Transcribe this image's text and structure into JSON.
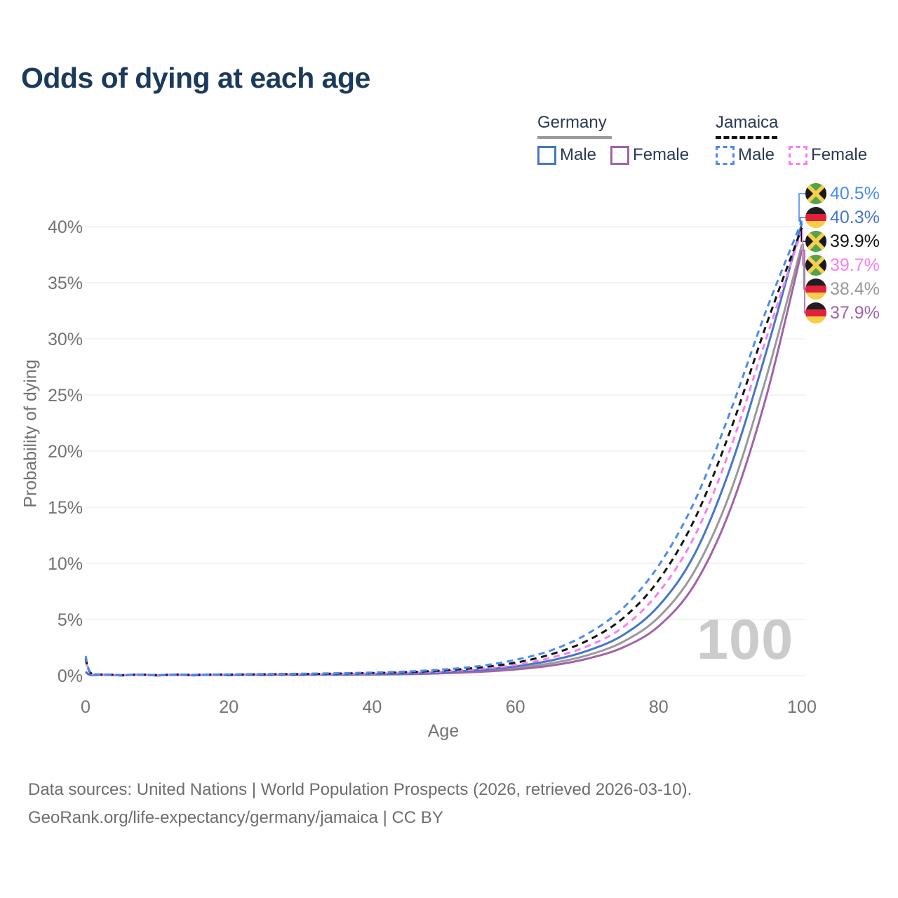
{
  "title": "Odds of dying at each age",
  "legend": {
    "groups": [
      {
        "name": "Germany",
        "line_style": "solid",
        "underline_color": "#9a9a9a",
        "items": [
          {
            "label": "Male",
            "color": "#4577c6"
          },
          {
            "label": "Female",
            "color": "#a263a8"
          }
        ]
      },
      {
        "name": "Jamaica",
        "line_style": "dashed",
        "underline_color": "#141414",
        "items": [
          {
            "label": "Male",
            "color": "#4b8bf0"
          },
          {
            "label": "Female",
            "color": "#f97ef1"
          }
        ]
      }
    ]
  },
  "end_labels": [
    {
      "value": "40.5%",
      "flag": "jamaica",
      "color": "#4b8bf0",
      "series": "jamaica-male"
    },
    {
      "value": "40.3%",
      "flag": "germany",
      "color": "#4577c6",
      "series": "germany-male"
    },
    {
      "value": "39.9%",
      "flag": "jamaica",
      "color": "#141414",
      "series": "jamaica-total"
    },
    {
      "value": "39.7%",
      "flag": "jamaica",
      "color": "#f97ef1",
      "series": "jamaica-female"
    },
    {
      "value": "38.4%",
      "flag": "germany",
      "color": "#9a9a9a",
      "series": "germany-total"
    },
    {
      "value": "37.9%",
      "flag": "germany",
      "color": "#a263a8",
      "series": "germany-female"
    }
  ],
  "watermark": "100",
  "footer": {
    "line1": "Data sources: United Nations | World Population Prospects (2026, retrieved 2026-03-10).",
    "line2": "GeoRank.org/life-expectancy/germany/jamaica | CC BY"
  },
  "chart_data": {
    "type": "line",
    "title": "Odds of dying at each age",
    "xlabel": "Age",
    "ylabel": "Probability of dying",
    "xlim": [
      0,
      100
    ],
    "ylim": [
      0,
      42
    ],
    "x_ticks": [
      0,
      20,
      40,
      60,
      80,
      100
    ],
    "x_tick_labels": [
      "0",
      "20",
      "40",
      "60",
      "80",
      "100"
    ],
    "y_ticks": [
      0,
      5,
      10,
      15,
      20,
      25,
      30,
      35,
      40
    ],
    "y_tick_labels": [
      "0%",
      "5%",
      "10%",
      "15%",
      "20%",
      "25%",
      "30%",
      "35%",
      "40%"
    ],
    "grid": "horizontal",
    "gridline_color": "#ececec",
    "legend_position": "top-right",
    "series": [
      {
        "id": "germany-total",
        "name": "Germany",
        "color": "#9a9a9a",
        "dashed": false,
        "points": [
          [
            0,
            0.33
          ],
          [
            1,
            0.027
          ],
          [
            5,
            0.009
          ],
          [
            10,
            0.009
          ],
          [
            15,
            0.025
          ],
          [
            20,
            0.04
          ],
          [
            25,
            0.05
          ],
          [
            30,
            0.06
          ],
          [
            35,
            0.075
          ],
          [
            40,
            0.11
          ],
          [
            45,
            0.16
          ],
          [
            50,
            0.25
          ],
          [
            55,
            0.41
          ],
          [
            60,
            0.67
          ],
          [
            65,
            1.1
          ],
          [
            70,
            1.8
          ],
          [
            75,
            3.0
          ],
          [
            80,
            5.2
          ],
          [
            85,
            9.3
          ],
          [
            90,
            16.3
          ],
          [
            95,
            26.5
          ],
          [
            100,
            38.4
          ]
        ]
      },
      {
        "id": "germany-female",
        "name": "Germany Female",
        "color": "#a263a8",
        "dashed": false,
        "points": [
          [
            0,
            0.3
          ],
          [
            1,
            0.024
          ],
          [
            5,
            0.008
          ],
          [
            10,
            0.008
          ],
          [
            15,
            0.02
          ],
          [
            20,
            0.03
          ],
          [
            25,
            0.04
          ],
          [
            30,
            0.05
          ],
          [
            35,
            0.065
          ],
          [
            40,
            0.09
          ],
          [
            45,
            0.13
          ],
          [
            50,
            0.21
          ],
          [
            55,
            0.34
          ],
          [
            60,
            0.55
          ],
          [
            65,
            0.9
          ],
          [
            70,
            1.5
          ],
          [
            75,
            2.5
          ],
          [
            80,
            4.4
          ],
          [
            85,
            8.1
          ],
          [
            90,
            14.8
          ],
          [
            95,
            24.8
          ],
          [
            100,
            37.9
          ]
        ]
      },
      {
        "id": "germany-male",
        "name": "Germany Male",
        "color": "#4577c6",
        "dashed": false,
        "points": [
          [
            0,
            0.35
          ],
          [
            1,
            0.03
          ],
          [
            5,
            0.01
          ],
          [
            10,
            0.01
          ],
          [
            15,
            0.03
          ],
          [
            20,
            0.05
          ],
          [
            25,
            0.06
          ],
          [
            30,
            0.07
          ],
          [
            35,
            0.09
          ],
          [
            40,
            0.13
          ],
          [
            45,
            0.19
          ],
          [
            50,
            0.31
          ],
          [
            55,
            0.5
          ],
          [
            60,
            0.82
          ],
          [
            65,
            1.35
          ],
          [
            70,
            2.2
          ],
          [
            75,
            3.6
          ],
          [
            80,
            6.2
          ],
          [
            85,
            10.8
          ],
          [
            90,
            18.5
          ],
          [
            95,
            28.8
          ],
          [
            100,
            40.3
          ]
        ]
      },
      {
        "id": "jamaica-female",
        "name": "Jamaica Female",
        "color": "#f97ef1",
        "dashed": true,
        "points": [
          [
            0,
            1.35
          ],
          [
            1,
            0.1
          ],
          [
            5,
            0.03
          ],
          [
            10,
            0.03
          ],
          [
            15,
            0.05
          ],
          [
            20,
            0.07
          ],
          [
            25,
            0.09
          ],
          [
            30,
            0.11
          ],
          [
            35,
            0.14
          ],
          [
            40,
            0.19
          ],
          [
            45,
            0.26
          ],
          [
            50,
            0.38
          ],
          [
            55,
            0.6
          ],
          [
            60,
            0.95
          ],
          [
            65,
            1.6
          ],
          [
            70,
            2.6
          ],
          [
            75,
            4.3
          ],
          [
            80,
            7.4
          ],
          [
            85,
            12.4
          ],
          [
            90,
            20.2
          ],
          [
            95,
            30.0
          ],
          [
            100,
            39.7
          ]
        ]
      },
      {
        "id": "jamaica-total",
        "name": "Jamaica",
        "color": "#141414",
        "dashed": true,
        "points": [
          [
            0,
            1.55
          ],
          [
            1,
            0.11
          ],
          [
            5,
            0.035
          ],
          [
            10,
            0.035
          ],
          [
            15,
            0.06
          ],
          [
            20,
            0.09
          ],
          [
            25,
            0.12
          ],
          [
            30,
            0.14
          ],
          [
            35,
            0.18
          ],
          [
            40,
            0.23
          ],
          [
            45,
            0.31
          ],
          [
            50,
            0.46
          ],
          [
            55,
            0.72
          ],
          [
            60,
            1.15
          ],
          [
            65,
            1.9
          ],
          [
            70,
            3.1
          ],
          [
            75,
            5.1
          ],
          [
            80,
            8.5
          ],
          [
            85,
            13.9
          ],
          [
            90,
            21.8
          ],
          [
            95,
            31.2
          ],
          [
            100,
            39.9
          ]
        ]
      },
      {
        "id": "jamaica-male",
        "name": "Jamaica Male",
        "color": "#4b8bf0",
        "dashed": true,
        "points": [
          [
            0,
            1.75
          ],
          [
            1,
            0.12
          ],
          [
            5,
            0.04
          ],
          [
            10,
            0.04
          ],
          [
            15,
            0.07
          ],
          [
            20,
            0.11
          ],
          [
            25,
            0.14
          ],
          [
            30,
            0.17
          ],
          [
            35,
            0.21
          ],
          [
            40,
            0.27
          ],
          [
            45,
            0.37
          ],
          [
            50,
            0.55
          ],
          [
            55,
            0.85
          ],
          [
            60,
            1.4
          ],
          [
            65,
            2.25
          ],
          [
            70,
            3.7
          ],
          [
            75,
            6.0
          ],
          [
            80,
            9.8
          ],
          [
            85,
            15.5
          ],
          [
            90,
            23.5
          ],
          [
            95,
            32.5
          ],
          [
            100,
            40.5
          ]
        ]
      }
    ]
  }
}
